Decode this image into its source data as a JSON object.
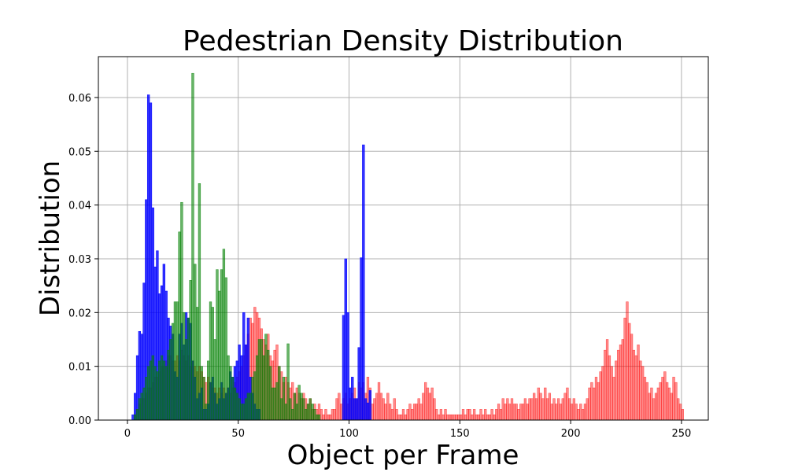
{
  "chart_data": {
    "type": "histogram",
    "title": "Pedestrian Density Distribution",
    "xlabel": "Object per Frame",
    "ylabel": "Distribution",
    "xlim": [
      -13.1,
      262.1
    ],
    "ylim": [
      0,
      0.0676
    ],
    "xticks": [
      0,
      50,
      100,
      150,
      200,
      250
    ],
    "yticks": [
      {
        "value": 0,
        "label": "0.00"
      },
      {
        "value": 0.01,
        "label": "0.01"
      },
      {
        "value": 0.02,
        "label": "0.02"
      },
      {
        "value": 0.03,
        "label": "0.03"
      },
      {
        "value": 0.04,
        "label": "0.04"
      },
      {
        "value": 0.05,
        "label": "0.05"
      },
      {
        "value": 0.06,
        "label": "0.06"
      }
    ],
    "grid": true,
    "series": [
      {
        "color": "#ff0000",
        "opacity": 0.45,
        "bins": [
          3,
          4,
          5,
          6,
          7,
          8,
          9,
          10,
          11,
          12,
          13,
          14,
          15,
          16,
          17,
          18,
          19,
          20,
          21,
          22,
          23,
          24,
          25,
          26,
          27,
          28,
          29,
          30,
          31,
          32,
          33,
          34,
          35,
          36,
          37,
          38,
          39,
          40,
          41,
          42,
          43,
          44,
          45,
          46,
          47,
          48,
          49,
          50,
          51,
          52,
          53,
          54,
          55,
          56,
          57,
          58,
          59,
          60,
          61,
          62,
          63,
          64,
          65,
          66,
          67,
          68,
          69,
          70,
          71,
          72,
          73,
          74,
          75,
          76,
          77,
          78,
          79,
          80,
          81,
          82,
          83,
          84,
          85,
          86,
          87,
          88,
          89,
          90,
          91,
          92,
          93,
          94,
          95,
          96,
          97,
          98,
          99,
          100,
          101,
          102,
          103,
          104,
          105,
          106,
          107,
          108,
          109,
          110,
          111,
          112,
          113,
          114,
          115,
          116,
          117,
          118,
          119,
          120,
          121,
          122,
          123,
          124,
          125,
          126,
          127,
          128,
          129,
          130,
          131,
          132,
          133,
          134,
          135,
          136,
          137,
          138,
          139,
          140,
          141,
          142,
          143,
          144,
          145,
          146,
          147,
          148,
          149,
          150,
          151,
          152,
          153,
          154,
          155,
          156,
          157,
          158,
          159,
          160,
          161,
          162,
          163,
          164,
          165,
          166,
          167,
          168,
          169,
          170,
          171,
          172,
          173,
          174,
          175,
          176,
          177,
          178,
          179,
          180,
          181,
          182,
          183,
          184,
          185,
          186,
          187,
          188,
          189,
          190,
          191,
          192,
          193,
          194,
          195,
          196,
          197,
          198,
          199,
          200,
          201,
          202,
          203,
          204,
          205,
          206,
          207,
          208,
          209,
          210,
          211,
          212,
          213,
          214,
          215,
          216,
          217,
          218,
          219,
          220,
          221,
          222,
          223,
          224,
          225,
          226,
          227,
          228,
          229,
          230,
          231,
          232,
          233,
          234,
          235,
          236,
          237,
          238,
          239,
          240,
          241,
          242,
          243,
          244,
          245,
          246,
          247,
          248,
          249,
          250,
          251
        ],
        "values": [
          0.001,
          0.002,
          0.003,
          0.004,
          0.004,
          0.005,
          0.006,
          0.006,
          0.007,
          0.008,
          0.008,
          0.009,
          0.01,
          0.01,
          0.011,
          0.012,
          0.012,
          0.011,
          0.011,
          0.012,
          0.011,
          0.013,
          0.012,
          0.011,
          0.012,
          0.01,
          0.011,
          0.01,
          0.009,
          0.01,
          0.009,
          0.008,
          0.007,
          0.008,
          0.007,
          0.006,
          0.006,
          0.005,
          0.006,
          0.005,
          0.006,
          0.005,
          0.006,
          0.005,
          0.006,
          0.007,
          0.008,
          0.009,
          0.01,
          0.012,
          0.014,
          0.016,
          0.019,
          0.018,
          0.021,
          0.02,
          0.019,
          0.017,
          0.015,
          0.014,
          0.016,
          0.012,
          0.011,
          0.013,
          0.014,
          0.01,
          0.009,
          0.007,
          0.008,
          0.007,
          0.006,
          0.007,
          0.005,
          0.006,
          0.005,
          0.004,
          0.005,
          0.004,
          0.003,
          0.004,
          0.002,
          0.003,
          0.002,
          0.003,
          0.002,
          0.001,
          0.002,
          0.001,
          0.001,
          0.002,
          0.002,
          0.004,
          0.005,
          0.003,
          0.004,
          0.005,
          0.003,
          0.004,
          0.005,
          0.006,
          0.004,
          0.007,
          0.006,
          0.007,
          0.005,
          0.008,
          0.006,
          0.003,
          0.004,
          0.005,
          0.007,
          0.005,
          0.004,
          0.003,
          0.005,
          0.003,
          0.002,
          0.004,
          0.002,
          0.001,
          0.001,
          0.002,
          0.001,
          0.002,
          0.003,
          0.002,
          0.003,
          0.003,
          0.004,
          0.003,
          0.005,
          0.007,
          0.006,
          0.005,
          0.006,
          0.004,
          0.002,
          0.001,
          0.002,
          0.001,
          0.002,
          0.001,
          0.001,
          0.001,
          0.001,
          0.001,
          0.001,
          0.001,
          0.002,
          0.001,
          0.002,
          0.002,
          0.001,
          0.002,
          0.001,
          0.001,
          0.002,
          0.001,
          0.002,
          0.001,
          0.001,
          0.002,
          0.001,
          0.002,
          0.003,
          0.002,
          0.004,
          0.003,
          0.004,
          0.003,
          0.004,
          0.003,
          0.003,
          0.002,
          0.003,
          0.003,
          0.004,
          0.003,
          0.004,
          0.004,
          0.005,
          0.004,
          0.006,
          0.005,
          0.004,
          0.006,
          0.004,
          0.005,
          0.003,
          0.004,
          0.003,
          0.004,
          0.003,
          0.004,
          0.005,
          0.006,
          0.004,
          0.003,
          0.004,
          0.003,
          0.002,
          0.003,
          0.002,
          0.003,
          0.004,
          0.006,
          0.007,
          0.006,
          0.008,
          0.007,
          0.009,
          0.01,
          0.013,
          0.015,
          0.012,
          0.01,
          0.008,
          0.011,
          0.013,
          0.014,
          0.015,
          0.019,
          0.022,
          0.018,
          0.016,
          0.013,
          0.012,
          0.014,
          0.011,
          0.01,
          0.008,
          0.007,
          0.005,
          0.006,
          0.004,
          0.005,
          0.006,
          0.007,
          0.008,
          0.009,
          0.007,
          0.006,
          0.005,
          0.008,
          0.007,
          0.004,
          0.003,
          0.002
        ]
      },
      {
        "color": "#0000ff",
        "opacity": 0.8,
        "bins": [
          2,
          3,
          4,
          5,
          6,
          7,
          8,
          9,
          10,
          11,
          12,
          13,
          14,
          15,
          16,
          17,
          18,
          19,
          20,
          21,
          22,
          23,
          24,
          25,
          26,
          27,
          28,
          29,
          30,
          31,
          32,
          33,
          34,
          35,
          36,
          37,
          38,
          39,
          40,
          41,
          42,
          43,
          44,
          45,
          46,
          47,
          48,
          49,
          50,
          51,
          52,
          53,
          54,
          55,
          56,
          57,
          58,
          59,
          60,
          61,
          62,
          63,
          64,
          65,
          66,
          67,
          68,
          69,
          70,
          71,
          72,
          73,
          74,
          75,
          76,
          77,
          78,
          79,
          80,
          81,
          82,
          83,
          84,
          85,
          86,
          87,
          88,
          89,
          90,
          91,
          92,
          93,
          94,
          95,
          96,
          97,
          98,
          99,
          100,
          101,
          102,
          103,
          104,
          105,
          106,
          107,
          108,
          109,
          110
        ],
        "values": [
          0.001,
          0.005,
          0.012,
          0.0165,
          0.016,
          0.0255,
          0.041,
          0.0605,
          0.059,
          0.0395,
          0.0285,
          0.0315,
          0.0235,
          0.025,
          0.029,
          0.024,
          0.019,
          0.0175,
          0.016,
          0.009,
          0.008,
          0.016,
          0.018,
          0.014,
          0.02,
          0.019,
          0.018,
          0.011,
          0.008,
          0.004,
          0.005,
          0.006,
          0.002,
          0.002,
          0.003,
          0.007,
          0.008,
          0.005,
          0.003,
          0.004,
          0.007,
          0.004,
          0.005,
          0.006,
          0.009,
          0.008,
          0.01,
          0.011,
          0.014,
          0.012,
          0.02,
          0.014,
          0.019,
          0.008,
          0.005,
          0.003,
          0.002,
          0.002,
          0,
          0,
          0,
          0,
          0,
          0,
          0,
          0,
          0,
          0,
          0,
          0,
          0,
          0,
          0,
          0,
          0,
          0,
          0,
          0,
          0,
          0,
          0,
          0,
          0,
          0,
          0,
          0,
          0,
          0,
          0,
          0,
          0,
          0,
          0,
          0,
          0,
          0.0195,
          0.03,
          0.02,
          0.006,
          0.008,
          0.004,
          0.004,
          0.0135,
          0.0302,
          0.0512,
          0.004,
          0.0032,
          0.0055
        ]
      },
      {
        "color": "#008000",
        "opacity": 0.6,
        "bins": [
          3,
          4,
          5,
          6,
          7,
          8,
          9,
          10,
          11,
          12,
          13,
          14,
          15,
          16,
          17,
          18,
          19,
          20,
          21,
          22,
          23,
          24,
          25,
          26,
          27,
          28,
          29,
          30,
          31,
          32,
          33,
          34,
          35,
          36,
          37,
          38,
          39,
          40,
          41,
          42,
          43,
          44,
          45,
          46,
          47,
          48,
          49,
          50,
          51,
          52,
          53,
          54,
          55,
          56,
          57,
          58,
          59,
          60,
          61,
          62,
          63,
          64,
          65,
          66,
          67,
          68,
          69,
          70,
          71,
          72,
          73,
          74,
          75,
          76,
          77,
          78,
          79,
          80,
          81,
          82,
          83,
          84,
          85,
          86,
          87
        ],
        "values": [
          0.001,
          0.002,
          0.004,
          0.005,
          0.006,
          0.008,
          0.01,
          0.011,
          0.012,
          0.01,
          0.009,
          0.011,
          0.012,
          0.011,
          0.01,
          0.013,
          0.015,
          0.018,
          0.022,
          0.022,
          0.035,
          0.0405,
          0.02,
          0.015,
          0.019,
          0.026,
          0.0645,
          0.029,
          0.021,
          0.044,
          0.01,
          0.008,
          0.003,
          0.011,
          0.022,
          0.021,
          0.015,
          0.028,
          0.024,
          0.028,
          0.0318,
          0.0265,
          0.012,
          0.01,
          0.008,
          0.006,
          0.005,
          0.004,
          0.003,
          0.003,
          0.004,
          0.005,
          0.005,
          0.008,
          0.009,
          0.012,
          0.015,
          0.015,
          0.012,
          0.016,
          0.013,
          0.01,
          0.006,
          0.006,
          0.007,
          0.01,
          0.004,
          0.008,
          0.003,
          0.0142,
          0.004,
          0.002,
          0.005,
          0.003,
          0.0065,
          0.005,
          0.004,
          0.002,
          0.003,
          0.004,
          0.003,
          0.002,
          0.001,
          0.001
        ]
      }
    ]
  }
}
